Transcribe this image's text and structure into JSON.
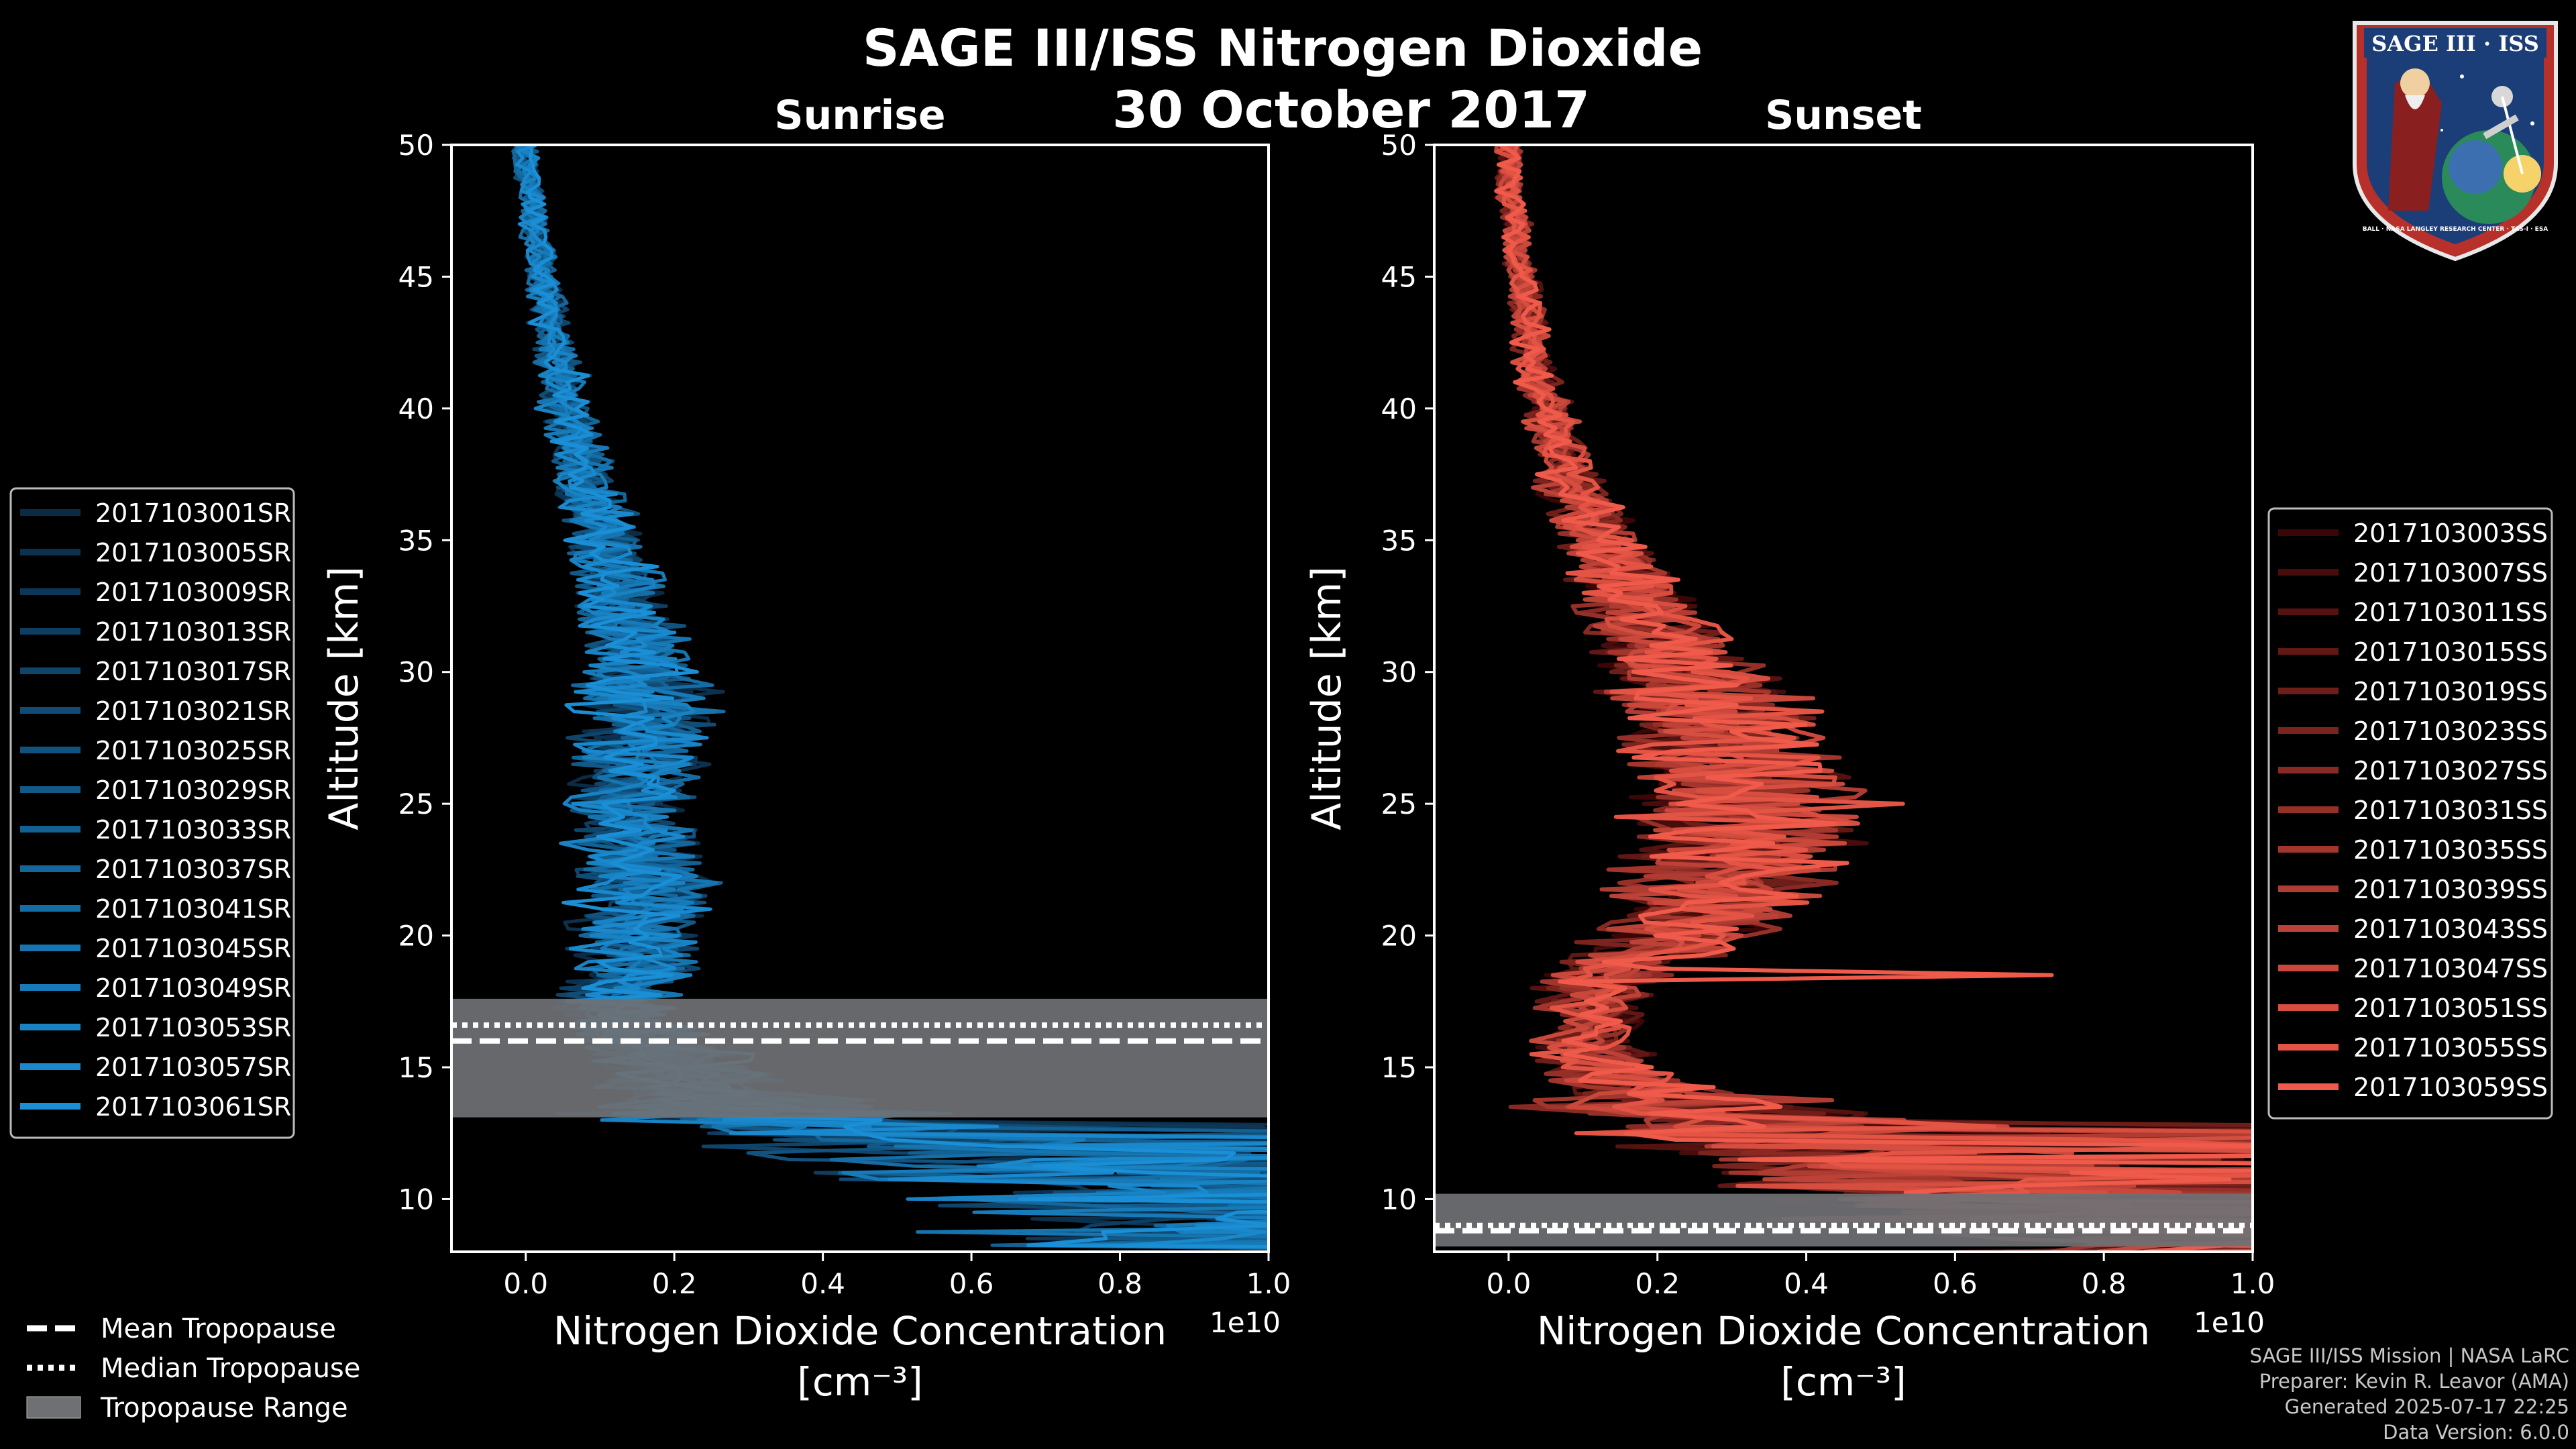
{
  "title": "SAGE III/ISS Nitrogen Dioxide",
  "date": "30 October 2017",
  "colors": {
    "background": "#000000",
    "sunrise": "#1a8fd6",
    "sunset": "#f05a4a",
    "tropopause_range": "#6e7074"
  },
  "legend_tropopause": [
    {
      "style": "dashed",
      "label": "Mean Tropopause"
    },
    {
      "style": "dotted",
      "label": "Median Tropopause"
    },
    {
      "style": "band",
      "label": "Tropopause Range"
    }
  ],
  "credits": {
    "mission": "SAGE III/ISS Mission | NASA LaRC",
    "preparer": "Preparer: Kevin R. Leavor (AMA)",
    "generated": "Generated 2025-07-17 22:25",
    "version": "Data Version: 6.0.0"
  },
  "logo": {
    "text_top": "SAGE III · ISS",
    "text_ring": "BALL · NASA LANGLEY RESEARCH CENTER · TAS-I · ESA"
  },
  "chart_data": [
    {
      "type": "line",
      "subtitle": "Sunrise",
      "xlabel_line1": "Nitrogen Dioxide Concentration",
      "xlabel_line2": "[cm⁻³]",
      "ylabel": "Altitude [km]",
      "x_multiplier": "1e10",
      "xlim": [
        -0.1,
        1.0
      ],
      "ylim": [
        8,
        50
      ],
      "xticks": [
        0.0,
        0.2,
        0.4,
        0.6,
        0.8,
        1.0
      ],
      "xtick_labels": [
        "0.0",
        "0.2",
        "0.4",
        "0.6",
        "0.8",
        "1.0"
      ],
      "yticks": [
        10,
        15,
        20,
        25,
        30,
        35,
        40,
        45,
        50
      ],
      "ytick_labels": [
        "10",
        "15",
        "20",
        "25",
        "30",
        "35",
        "40",
        "45",
        "50"
      ],
      "tropopause": {
        "mean": 16.0,
        "median": 16.6,
        "range": [
          13.1,
          17.6
        ]
      },
      "legend": [
        "2017103001SR",
        "2017103005SR",
        "2017103009SR",
        "2017103013SR",
        "2017103017SR",
        "2017103021SR",
        "2017103025SR",
        "2017103029SR",
        "2017103033SR",
        "2017103037SR",
        "2017103041SR",
        "2017103045SR",
        "2017103049SR",
        "2017103053SR",
        "2017103057SR",
        "2017103061SR"
      ],
      "profile_altitudes": [
        8,
        9,
        10,
        11,
        12,
        13,
        14,
        15,
        16,
        17,
        18,
        19,
        20,
        21,
        22,
        23,
        24,
        25,
        26,
        27,
        28,
        29,
        30,
        31,
        32,
        33,
        34,
        35,
        36,
        37,
        38,
        39,
        40,
        41,
        42,
        43,
        44,
        45,
        46,
        47,
        48,
        49,
        50
      ],
      "mean_profile": [
        1.0,
        1.0,
        0.9,
        0.7,
        0.55,
        0.3,
        0.22,
        0.2,
        0.16,
        0.12,
        0.12,
        0.13,
        0.14,
        0.15,
        0.15,
        0.14,
        0.13,
        0.13,
        0.14,
        0.15,
        0.15,
        0.15,
        0.15,
        0.14,
        0.13,
        0.12,
        0.11,
        0.1,
        0.09,
        0.08,
        0.07,
        0.06,
        0.05,
        0.05,
        0.04,
        0.03,
        0.03,
        0.02,
        0.02,
        0.01,
        0.01,
        0.0,
        0.0
      ],
      "spikes": [
        [
          12.0,
          0.64
        ],
        [
          11.1,
          0.79
        ]
      ]
    },
    {
      "type": "line",
      "subtitle": "Sunset",
      "xlabel_line1": "Nitrogen Dioxide Concentration",
      "xlabel_line2": "[cm⁻³]",
      "ylabel": "Altitude [km]",
      "x_multiplier": "1e10",
      "xlim": [
        -0.1,
        1.0
      ],
      "ylim": [
        8,
        50
      ],
      "xticks": [
        0.0,
        0.2,
        0.4,
        0.6,
        0.8,
        1.0
      ],
      "xtick_labels": [
        "0.0",
        "0.2",
        "0.4",
        "0.6",
        "0.8",
        "1.0"
      ],
      "yticks": [
        10,
        15,
        20,
        25,
        30,
        35,
        40,
        45,
        50
      ],
      "ytick_labels": [
        "10",
        "15",
        "20",
        "25",
        "30",
        "35",
        "40",
        "45",
        "50"
      ],
      "tropopause": {
        "mean": 8.8,
        "median": 9.0,
        "range": [
          8.2,
          10.2
        ]
      },
      "legend": [
        "2017103003SS",
        "2017103007SS",
        "2017103011SS",
        "2017103015SS",
        "2017103019SS",
        "2017103023SS",
        "2017103027SS",
        "2017103031SS",
        "2017103035SS",
        "2017103039SS",
        "2017103043SS",
        "2017103047SS",
        "2017103051SS",
        "2017103055SS",
        "2017103059SS"
      ],
      "profile_altitudes": [
        8,
        9,
        10,
        11,
        12,
        13,
        14,
        15,
        16,
        17,
        18,
        19,
        20,
        21,
        22,
        23,
        24,
        25,
        26,
        27,
        28,
        29,
        30,
        31,
        32,
        33,
        34,
        35,
        36,
        37,
        38,
        39,
        40,
        41,
        42,
        43,
        44,
        45,
        46,
        47,
        48,
        49,
        50
      ],
      "mean_profile": [
        1.0,
        0.9,
        0.6,
        0.45,
        0.4,
        0.3,
        0.18,
        0.12,
        0.1,
        0.1,
        0.12,
        0.15,
        0.22,
        0.25,
        0.28,
        0.3,
        0.3,
        0.3,
        0.3,
        0.28,
        0.27,
        0.25,
        0.23,
        0.2,
        0.18,
        0.16,
        0.14,
        0.12,
        0.1,
        0.08,
        0.07,
        0.06,
        0.05,
        0.04,
        0.03,
        0.03,
        0.02,
        0.02,
        0.01,
        0.01,
        0.0,
        0.0,
        0.0
      ],
      "spikes": [
        [
          18.5,
          0.73
        ],
        [
          24.9,
          0.53
        ]
      ]
    }
  ]
}
